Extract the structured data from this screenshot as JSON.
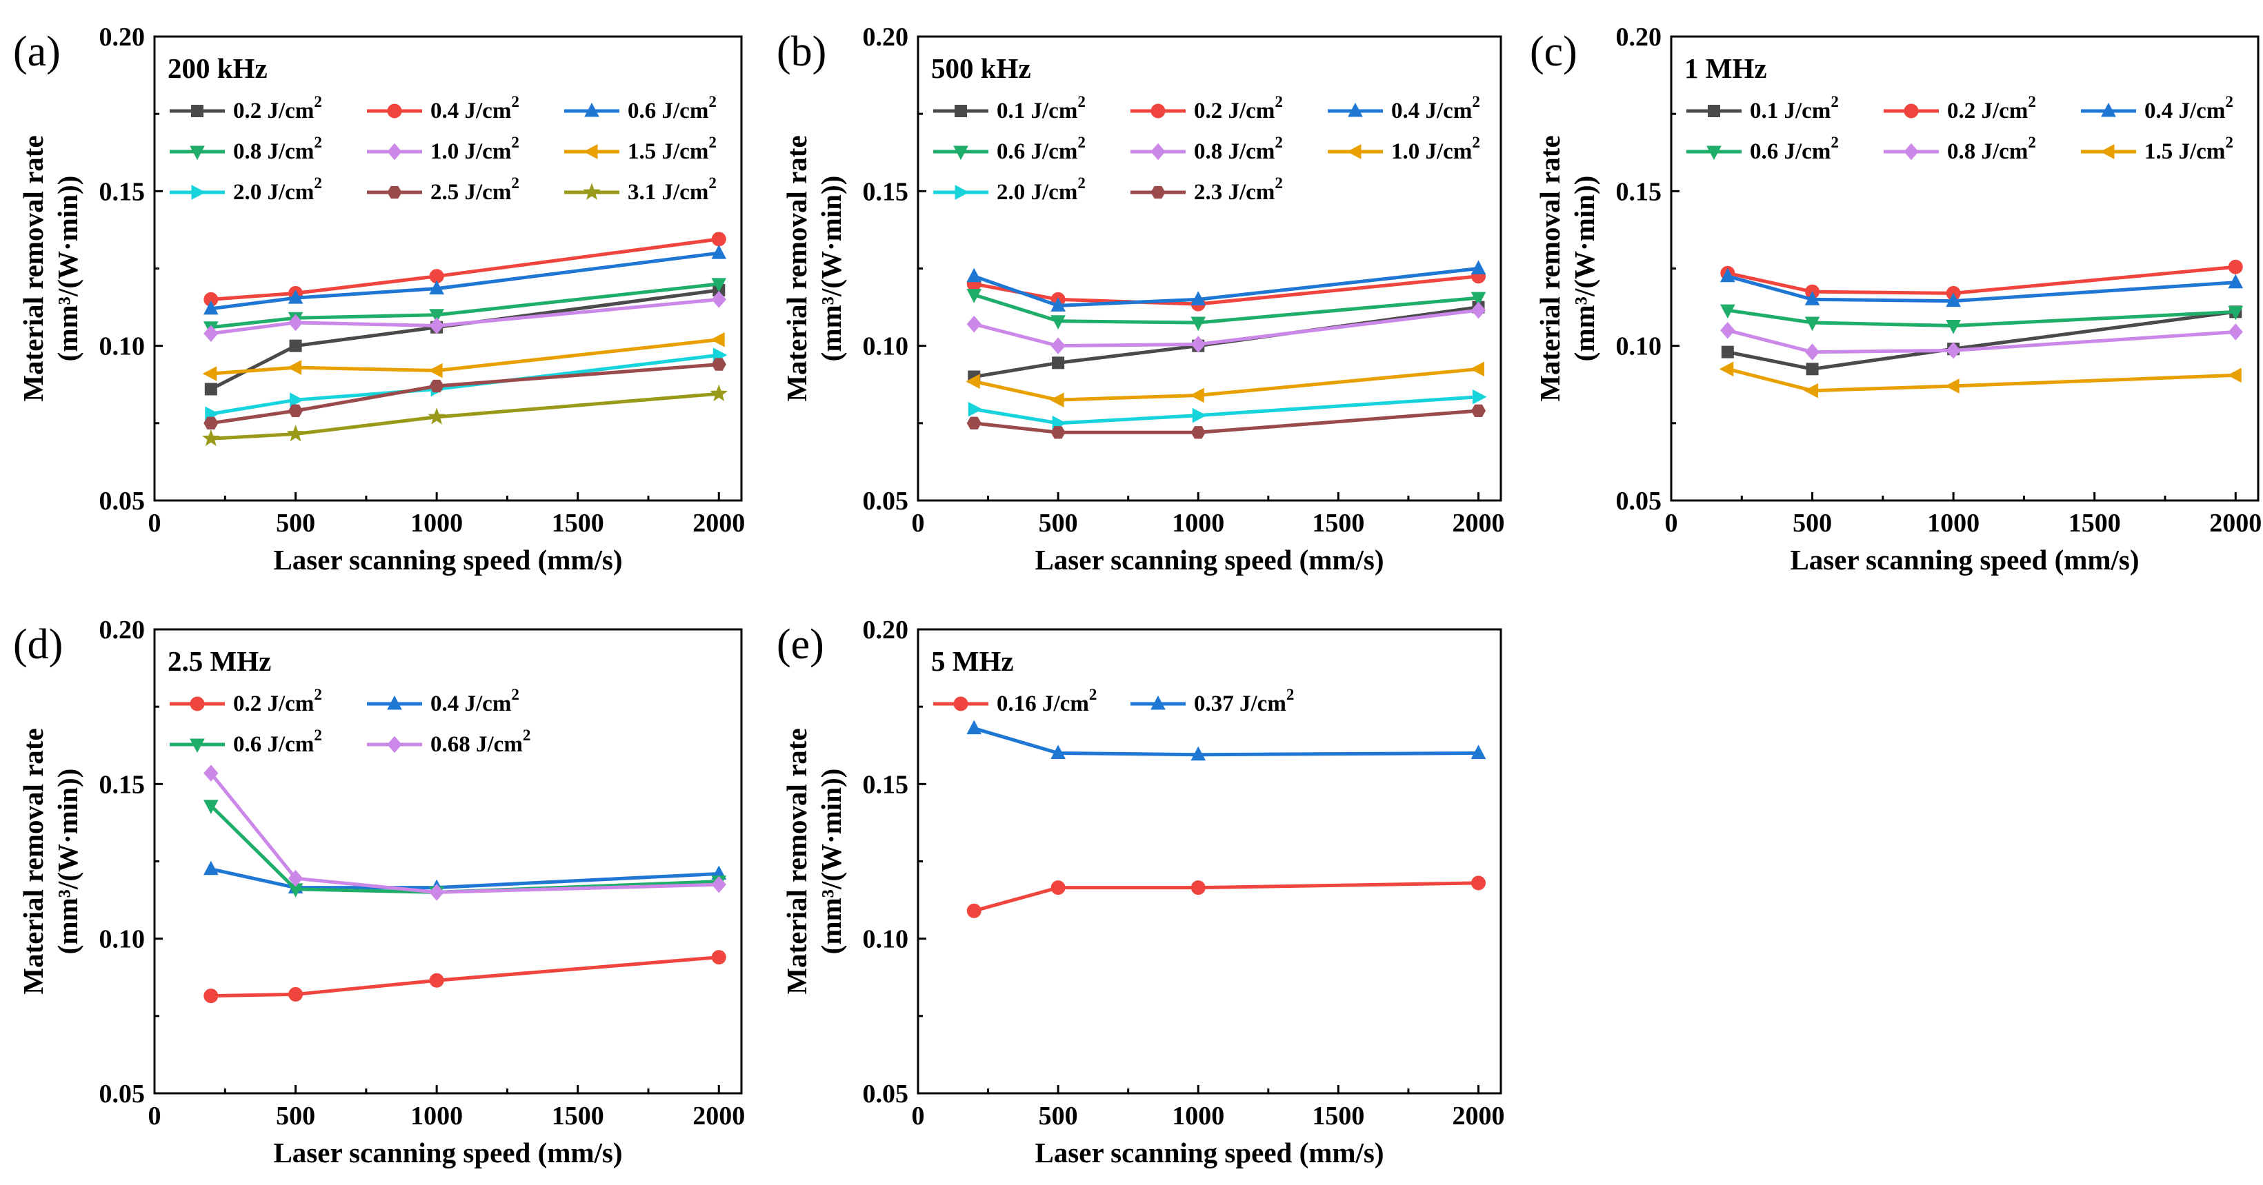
{
  "chart_data": [
    {
      "panel": "(a)",
      "type": "line",
      "title": "200 kHz",
      "xlabel": "Laser scanning speed (mm/s)",
      "ylabel": "Material removal rate",
      "ylabel_units": "(mm³/(W·min))",
      "xlim": [
        0,
        2080
      ],
      "ylim": [
        0.05,
        0.2
      ],
      "xticks": [
        0,
        500,
        1000,
        1500,
        2000
      ],
      "yticks": [
        0.05,
        0.1,
        0.15,
        0.2
      ],
      "xtick_labels": [
        "0",
        "500",
        "1000",
        "1500",
        "2000"
      ],
      "ytick_labels": [
        "0.05",
        "0.10",
        "0.15",
        "0.20"
      ],
      "legend_cols": 3,
      "series": [
        {
          "name": "0.2 J/cm²",
          "color": "#4a4a4a",
          "marker": "square",
          "x": [
            200,
            500,
            1000,
            2000
          ],
          "y": [
            0.086,
            0.1,
            0.106,
            0.118
          ]
        },
        {
          "name": "0.4 J/cm²",
          "color": "#f0453e",
          "marker": "circle",
          "x": [
            200,
            500,
            1000,
            2000
          ],
          "y": [
            0.115,
            0.117,
            0.1225,
            0.1345
          ]
        },
        {
          "name": "0.6 J/cm²",
          "color": "#1f77d4",
          "marker": "triangle-up",
          "x": [
            200,
            500,
            1000,
            2000
          ],
          "y": [
            0.112,
            0.1155,
            0.1185,
            0.13
          ]
        },
        {
          "name": "0.8 J/cm²",
          "color": "#1fad6a",
          "marker": "triangle-down",
          "x": [
            200,
            500,
            1000,
            2000
          ],
          "y": [
            0.106,
            0.109,
            0.11,
            0.12
          ]
        },
        {
          "name": "1.0 J/cm²",
          "color": "#cc88e8",
          "marker": "diamond",
          "x": [
            200,
            500,
            1000,
            2000
          ],
          "y": [
            0.104,
            0.1075,
            0.1065,
            0.115
          ]
        },
        {
          "name": "1.5 J/cm²",
          "color": "#e8a000",
          "marker": "triangle-left",
          "x": [
            200,
            500,
            1000,
            2000
          ],
          "y": [
            0.091,
            0.093,
            0.092,
            0.102
          ]
        },
        {
          "name": "2.0 J/cm²",
          "color": "#17d4dc",
          "marker": "triangle-right",
          "x": [
            200,
            500,
            1000,
            2000
          ],
          "y": [
            0.078,
            0.0825,
            0.086,
            0.097
          ]
        },
        {
          "name": "2.5 J/cm²",
          "color": "#9a4a4a",
          "marker": "hexagon",
          "x": [
            200,
            500,
            1000,
            2000
          ],
          "y": [
            0.075,
            0.079,
            0.087,
            0.094
          ]
        },
        {
          "name": "3.1 J/cm²",
          "color": "#9a9a1a",
          "marker": "star",
          "x": [
            200,
            500,
            1000,
            2000
          ],
          "y": [
            0.07,
            0.0715,
            0.077,
            0.0845
          ]
        }
      ]
    },
    {
      "panel": "(b)",
      "type": "line",
      "title": "500 kHz",
      "xlabel": "Laser scanning speed (mm/s)",
      "ylabel": "Material removal rate",
      "ylabel_units": "(mm³/(W·min))",
      "xlim": [
        0,
        2080
      ],
      "ylim": [
        0.05,
        0.2
      ],
      "xticks": [
        0,
        500,
        1000,
        1500,
        2000
      ],
      "yticks": [
        0.05,
        0.1,
        0.15,
        0.2
      ],
      "xtick_labels": [
        "0",
        "500",
        "1000",
        "1500",
        "2000"
      ],
      "ytick_labels": [
        "0.05",
        "0.10",
        "0.15",
        "0.20"
      ],
      "legend_cols": 3,
      "series": [
        {
          "name": "0.1 J/cm²",
          "color": "#4a4a4a",
          "marker": "square",
          "x": [
            200,
            500,
            1000,
            2000
          ],
          "y": [
            0.09,
            0.0945,
            0.1,
            0.1125
          ]
        },
        {
          "name": "0.2 J/cm²",
          "color": "#f0453e",
          "marker": "circle",
          "x": [
            200,
            500,
            1000,
            2000
          ],
          "y": [
            0.12,
            0.115,
            0.1135,
            0.1225
          ]
        },
        {
          "name": "0.4 J/cm²",
          "color": "#1f77d4",
          "marker": "triangle-up",
          "x": [
            200,
            500,
            1000,
            2000
          ],
          "y": [
            0.1225,
            0.113,
            0.115,
            0.125
          ]
        },
        {
          "name": "0.6 J/cm²",
          "color": "#1fad6a",
          "marker": "triangle-down",
          "x": [
            200,
            500,
            1000,
            2000
          ],
          "y": [
            0.1165,
            0.108,
            0.1075,
            0.1155
          ]
        },
        {
          "name": "0.8 J/cm²",
          "color": "#cc88e8",
          "marker": "diamond",
          "x": [
            200,
            500,
            1000,
            2000
          ],
          "y": [
            0.107,
            0.1,
            0.1005,
            0.1115
          ]
        },
        {
          "name": "1.0 J/cm²",
          "color": "#e8a000",
          "marker": "triangle-left",
          "x": [
            200,
            500,
            1000,
            2000
          ],
          "y": [
            0.0885,
            0.0825,
            0.084,
            0.0925
          ]
        },
        {
          "name": "2.0 J/cm²",
          "color": "#17d4dc",
          "marker": "triangle-right",
          "x": [
            200,
            500,
            1000,
            2000
          ],
          "y": [
            0.0795,
            0.075,
            0.0775,
            0.0835
          ]
        },
        {
          "name": "2.3 J/cm²",
          "color": "#9a4a4a",
          "marker": "hexagon",
          "x": [
            200,
            500,
            1000,
            2000
          ],
          "y": [
            0.075,
            0.072,
            0.072,
            0.079
          ]
        }
      ]
    },
    {
      "panel": "(c)",
      "type": "line",
      "title": "1 MHz",
      "xlabel": "Laser scanning speed (mm/s)",
      "ylabel": "Material removal rate",
      "ylabel_units": "(mm³/(W·min))",
      "xlim": [
        0,
        2080
      ],
      "ylim": [
        0.05,
        0.2
      ],
      "xticks": [
        0,
        500,
        1000,
        1500,
        2000
      ],
      "yticks": [
        0.05,
        0.1,
        0.15,
        0.2
      ],
      "xtick_labels": [
        "0",
        "500",
        "1000",
        "1500",
        "2000"
      ],
      "ytick_labels": [
        "0.05",
        "0.10",
        "0.15",
        "0.20"
      ],
      "legend_cols": 3,
      "series": [
        {
          "name": "0.1 J/cm²",
          "color": "#4a4a4a",
          "marker": "square",
          "x": [
            200,
            500,
            1000,
            2000
          ],
          "y": [
            0.098,
            0.0925,
            0.099,
            0.111
          ]
        },
        {
          "name": "0.2 J/cm²",
          "color": "#f0453e",
          "marker": "circle",
          "x": [
            200,
            500,
            1000,
            2000
          ],
          "y": [
            0.1235,
            0.1175,
            0.117,
            0.1255
          ]
        },
        {
          "name": "0.4 J/cm²",
          "color": "#1f77d4",
          "marker": "triangle-up",
          "x": [
            200,
            500,
            1000,
            2000
          ],
          "y": [
            0.1225,
            0.115,
            0.1145,
            0.1205
          ]
        },
        {
          "name": "0.6 J/cm²",
          "color": "#1fad6a",
          "marker": "triangle-down",
          "x": [
            200,
            500,
            1000,
            2000
          ],
          "y": [
            0.1115,
            0.1075,
            0.1065,
            0.111
          ]
        },
        {
          "name": "0.8 J/cm²",
          "color": "#cc88e8",
          "marker": "diamond",
          "x": [
            200,
            500,
            1000,
            2000
          ],
          "y": [
            0.105,
            0.098,
            0.0985,
            0.1045
          ]
        },
        {
          "name": "1.5 J/cm²",
          "color": "#e8a000",
          "marker": "triangle-left",
          "x": [
            200,
            500,
            1000,
            2000
          ],
          "y": [
            0.0925,
            0.0855,
            0.087,
            0.0905
          ]
        }
      ]
    },
    {
      "panel": "(d)",
      "type": "line",
      "title": "2.5 MHz",
      "xlabel": "Laser scanning speed (mm/s)",
      "ylabel": "Material removal rate",
      "ylabel_units": "(mm³/(W·min))",
      "xlim": [
        0,
        2080
      ],
      "ylim": [
        0.05,
        0.2
      ],
      "xticks": [
        0,
        500,
        1000,
        1500,
        2000
      ],
      "yticks": [
        0.05,
        0.1,
        0.15,
        0.2
      ],
      "xtick_labels": [
        "0",
        "500",
        "1000",
        "1500",
        "2000"
      ],
      "ytick_labels": [
        "0.05",
        "0.10",
        "0.15",
        "0.20"
      ],
      "legend_cols": 2,
      "series": [
        {
          "name": "0.2 J/cm²",
          "color": "#f0453e",
          "marker": "circle",
          "x": [
            200,
            500,
            1000,
            2000
          ],
          "y": [
            0.0815,
            0.082,
            0.0865,
            0.094
          ]
        },
        {
          "name": "0.4 J/cm²",
          "color": "#1f77d4",
          "marker": "triangle-up",
          "x": [
            200,
            500,
            1000,
            2000
          ],
          "y": [
            0.1225,
            0.1165,
            0.1165,
            0.121
          ]
        },
        {
          "name": "0.6 J/cm²",
          "color": "#1fad6a",
          "marker": "triangle-down",
          "x": [
            200,
            500,
            1000,
            2000
          ],
          "y": [
            0.143,
            0.116,
            0.115,
            0.1185
          ]
        },
        {
          "name": "0.68 J/cm²",
          "color": "#cc88e8",
          "marker": "diamond",
          "x": [
            200,
            500,
            1000,
            2000
          ],
          "y": [
            0.1535,
            0.1195,
            0.115,
            0.1175
          ]
        }
      ]
    },
    {
      "panel": "(e)",
      "type": "line",
      "title": "5 MHz",
      "xlabel": "Laser scanning speed (mm/s)",
      "ylabel": "Material removal rate",
      "ylabel_units": "(mm³/(W·min))",
      "xlim": [
        0,
        2080
      ],
      "ylim": [
        0.05,
        0.2
      ],
      "xticks": [
        0,
        500,
        1000,
        1500,
        2000
      ],
      "yticks": [
        0.05,
        0.1,
        0.15,
        0.2
      ],
      "xtick_labels": [
        "0",
        "500",
        "1000",
        "1500",
        "2000"
      ],
      "ytick_labels": [
        "0.05",
        "0.10",
        "0.15",
        "0.20"
      ],
      "legend_cols": 2,
      "series": [
        {
          "name": "0.16 J/cm²",
          "color": "#f0453e",
          "marker": "circle",
          "x": [
            200,
            500,
            1000,
            2000
          ],
          "y": [
            0.109,
            0.1165,
            0.1165,
            0.118
          ]
        },
        {
          "name": "0.37 J/cm²",
          "color": "#1f77d4",
          "marker": "triangle-up",
          "x": [
            200,
            500,
            1000,
            2000
          ],
          "y": [
            0.168,
            0.16,
            0.1595,
            0.16
          ]
        }
      ]
    }
  ]
}
